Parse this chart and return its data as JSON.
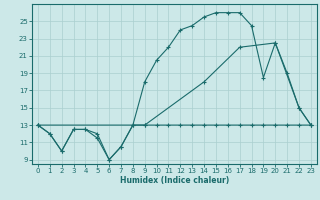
{
  "xlabel": "Humidex (Indice chaleur)",
  "bg_color": "#cce8e8",
  "line_color": "#1a6b6b",
  "grid_color": "#aacfcf",
  "curve1_x": [
    0,
    1,
    2,
    3,
    4,
    5,
    6,
    7,
    8,
    9,
    10,
    11,
    12,
    13,
    14,
    15,
    16,
    17,
    18,
    19,
    20,
    21,
    22,
    23
  ],
  "curve1_y": [
    13,
    12,
    10,
    12.5,
    12.5,
    12,
    9,
    10.5,
    13,
    13,
    13,
    13,
    13,
    13,
    13,
    13,
    13,
    13,
    13,
    13,
    13,
    13,
    13,
    13
  ],
  "curve2_x": [
    0,
    1,
    2,
    3,
    4,
    5,
    6,
    7,
    8,
    9,
    10,
    11,
    12,
    13,
    14,
    15,
    16,
    17,
    18,
    19,
    20,
    21,
    22,
    23
  ],
  "curve2_y": [
    13,
    12,
    10,
    12.5,
    12.5,
    11.5,
    9,
    10.5,
    13,
    18,
    20.5,
    22,
    24,
    24.5,
    25.5,
    26,
    26,
    26,
    24.5,
    18.5,
    22.5,
    19,
    15,
    13
  ],
  "curve3_x": [
    0,
    9,
    14,
    17,
    20,
    22,
    23
  ],
  "curve3_y": [
    13,
    13,
    18,
    22,
    22.5,
    15,
    13
  ],
  "ylim": [
    8.5,
    27
  ],
  "xlim": [
    -0.5,
    23.5
  ],
  "yticks": [
    9,
    11,
    13,
    15,
    17,
    19,
    21,
    23,
    25
  ],
  "xticks": [
    0,
    1,
    2,
    3,
    4,
    5,
    6,
    7,
    8,
    9,
    10,
    11,
    12,
    13,
    14,
    15,
    16,
    17,
    18,
    19,
    20,
    21,
    22,
    23
  ]
}
